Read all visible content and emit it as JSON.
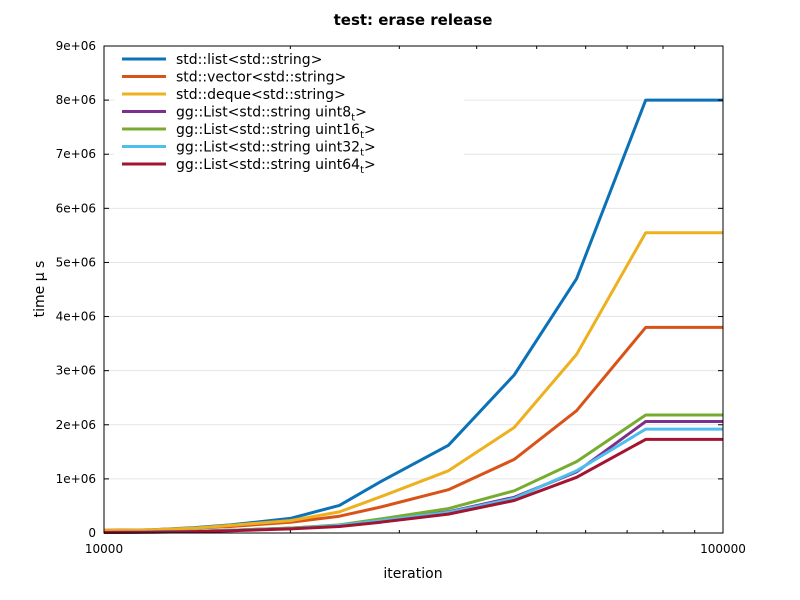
{
  "chart_data": {
    "type": "line",
    "title": "test: erase release",
    "xlabel": "iteration",
    "ylabel": "time μ s",
    "x_scale": "log",
    "xlim": [
      10000,
      100000
    ],
    "ylim": [
      0,
      9000000
    ],
    "x_tick_labels": [
      "10000",
      "100000"
    ],
    "y_ticks": [
      0,
      1000000,
      2000000,
      3000000,
      4000000,
      5000000,
      6000000,
      7000000,
      8000000,
      9000000
    ],
    "y_tick_labels": [
      "0",
      "1e+06",
      "2e+06",
      "3e+06",
      "4e+06",
      "5e+06",
      "6e+06",
      "7e+06",
      "8e+06",
      "9e+06"
    ],
    "grid": "horizontal",
    "legend_position": "top-left",
    "x": [
      10000,
      12000,
      14000,
      16000,
      20000,
      24000,
      28000,
      36000,
      46000,
      58000,
      75000,
      100000
    ],
    "series": [
      {
        "name": "std::list<std::string>",
        "legend_main": "std::list<std::string>",
        "legend_sub": "",
        "legend_tail": "",
        "color": "#0b72b8",
        "values": [
          40000,
          60000,
          100000,
          150000,
          270000,
          510000,
          950000,
          1620000,
          2920000,
          4700000,
          8000000,
          8000000
        ]
      },
      {
        "name": "std::vector<std::string>",
        "legend_main": "std::vector<std::string>",
        "legend_sub": "",
        "legend_tail": "",
        "color": "#d95319",
        "values": [
          50000,
          60000,
          90000,
          120000,
          200000,
          310000,
          480000,
          800000,
          1360000,
          2260000,
          3800000,
          3800000
        ]
      },
      {
        "name": "std::deque<std::string>",
        "legend_main": "std::deque<std::string>",
        "legend_sub": "",
        "legend_tail": "",
        "color": "#edb120",
        "values": [
          40000,
          60000,
          90000,
          140000,
          230000,
          390000,
          670000,
          1150000,
          1950000,
          3300000,
          5550000,
          5550000
        ]
      },
      {
        "name": "gg::List<std::string uint8_t>",
        "legend_main": "gg::List<std::string uint8",
        "legend_sub": "t",
        "legend_tail": ">",
        "color": "#7e2f8e",
        "values": [
          10000,
          20000,
          30000,
          50000,
          90000,
          140000,
          240000,
          390000,
          660000,
          1130000,
          2060000,
          2060000
        ]
      },
      {
        "name": "gg::List<std::string uint16_t>",
        "legend_main": "gg::List<std::string uint16",
        "legend_sub": "t",
        "legend_tail": ">",
        "color": "#77ac30",
        "values": [
          10000,
          20000,
          30000,
          50000,
          90000,
          150000,
          260000,
          450000,
          780000,
          1320000,
          2180000,
          2180000
        ]
      },
      {
        "name": "gg::List<std::string uint32_t>",
        "legend_main": "gg::List<std::string uint32",
        "legend_sub": "t",
        "legend_tail": ">",
        "color": "#4dbeee",
        "values": [
          10000,
          20000,
          30000,
          50000,
          80000,
          140000,
          230000,
          380000,
          640000,
          1150000,
          1920000,
          1920000
        ]
      },
      {
        "name": "gg::List<std::string uint64_t>",
        "legend_main": "gg::List<std::string uint64",
        "legend_sub": "t",
        "legend_tail": ">",
        "color": "#a2142f",
        "values": [
          10000,
          15000,
          25000,
          40000,
          75000,
          120000,
          200000,
          350000,
          600000,
          1030000,
          1730000,
          1730000
        ]
      }
    ]
  }
}
